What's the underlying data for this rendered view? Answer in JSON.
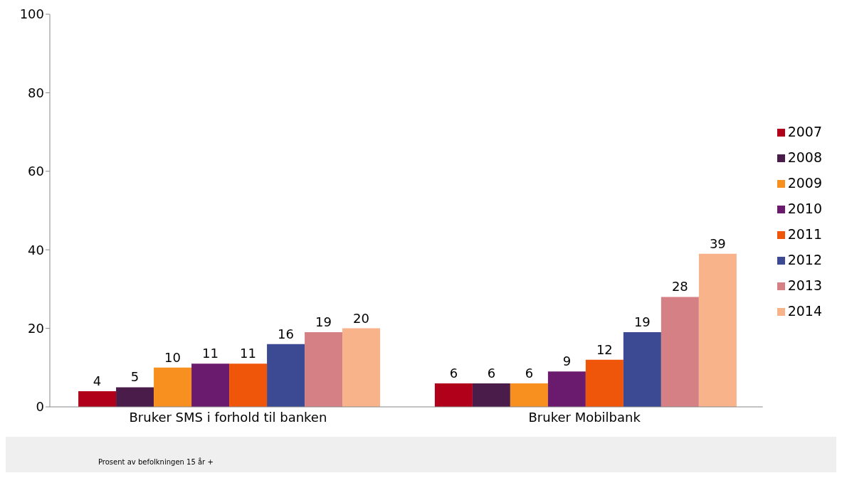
{
  "chart_data": {
    "type": "bar",
    "categories": [
      "Bruker SMS i forhold til banken",
      "Bruker Mobilbank"
    ],
    "series": [
      {
        "name": "2007",
        "color": "#b0001a",
        "values": [
          4,
          6
        ]
      },
      {
        "name": "2008",
        "color": "#4a1c4a",
        "values": [
          5,
          6
        ]
      },
      {
        "name": "2009",
        "color": "#f7901e",
        "values": [
          10,
          6
        ]
      },
      {
        "name": "2010",
        "color": "#6a1b6e",
        "values": [
          11,
          9
        ]
      },
      {
        "name": "2011",
        "color": "#f0560a",
        "values": [
          11,
          12
        ]
      },
      {
        "name": "2012",
        "color": "#3c4a93",
        "values": [
          16,
          19
        ]
      },
      {
        "name": "2013",
        "color": "#d48084",
        "values": [
          19,
          28
        ]
      },
      {
        "name": "2014",
        "color": "#f9b38a",
        "values": [
          20,
          39
        ]
      }
    ],
    "ylim": [
      0,
      100
    ],
    "yticks": [
      0,
      20,
      40,
      60,
      80,
      100
    ],
    "grid": false,
    "legend": "right",
    "data_labels": true,
    "annotations": [
      "Prosent av befolkningen 15 år +"
    ]
  }
}
